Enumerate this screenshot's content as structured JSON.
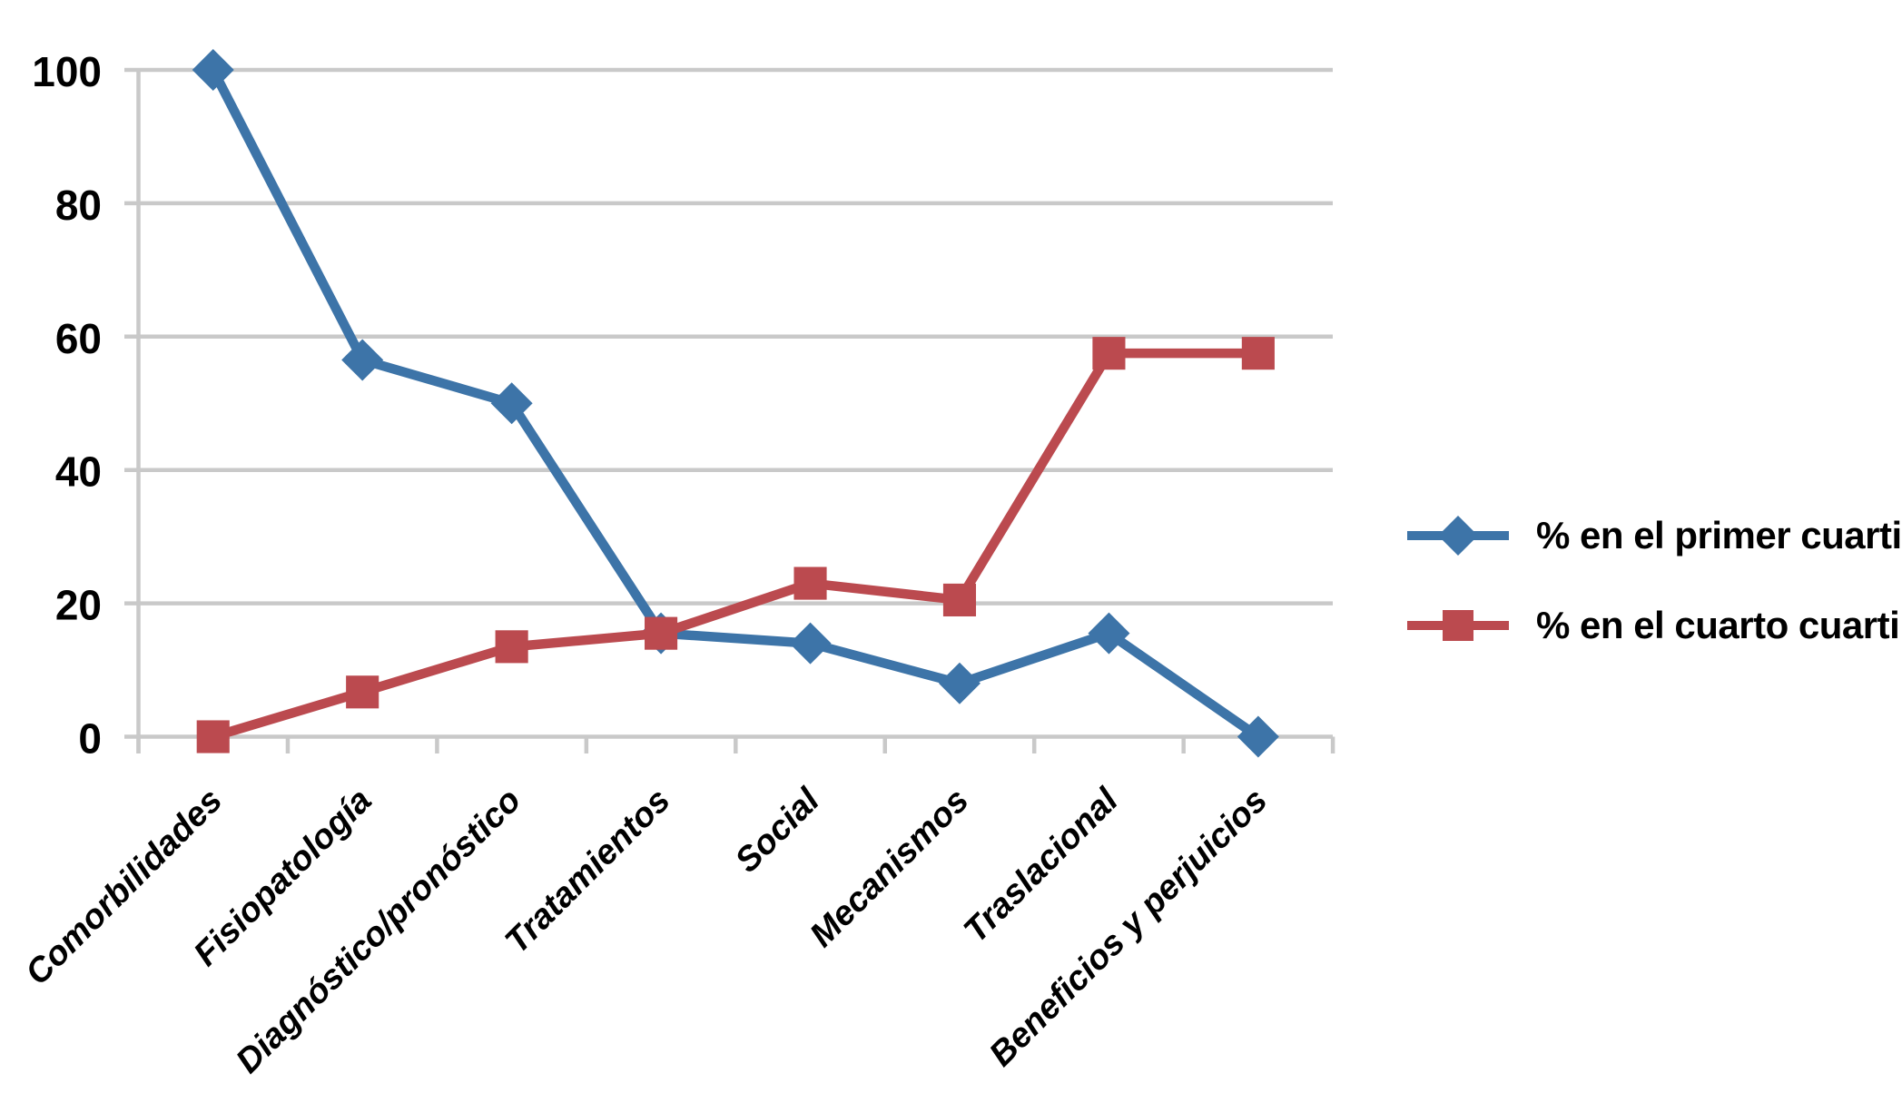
{
  "chart_data": {
    "type": "line",
    "categories": [
      "Comorbilidades",
      "Fisiopatología",
      "Diagnóstico/pronóstico",
      "Tratamientos",
      "Social",
      "Mecanismos",
      "Traslacional",
      "Beneficios y perjuicios"
    ],
    "series": [
      {
        "name": "% en el primer cuartil",
        "color": "#3D74A8",
        "marker": "diamond",
        "values": [
          100,
          56.5,
          50,
          15.5,
          14,
          8,
          15.5,
          0
        ]
      },
      {
        "name": "% en el cuarto cuartil",
        "color": "#BB4A4F",
        "marker": "square",
        "values": [
          0,
          6.7,
          13.5,
          15.5,
          23,
          20.5,
          57.5,
          57.5
        ]
      }
    ],
    "title": "",
    "xlabel": "",
    "ylabel": "",
    "y_ticks": [
      0,
      20,
      40,
      60,
      80,
      100
    ],
    "ylim": [
      0,
      100
    ],
    "grid": "horizontal",
    "gridline_color": "#C9C9C9",
    "axis_color": "#C9C9C9",
    "text_color": "#000000",
    "legend_position": "right"
  }
}
